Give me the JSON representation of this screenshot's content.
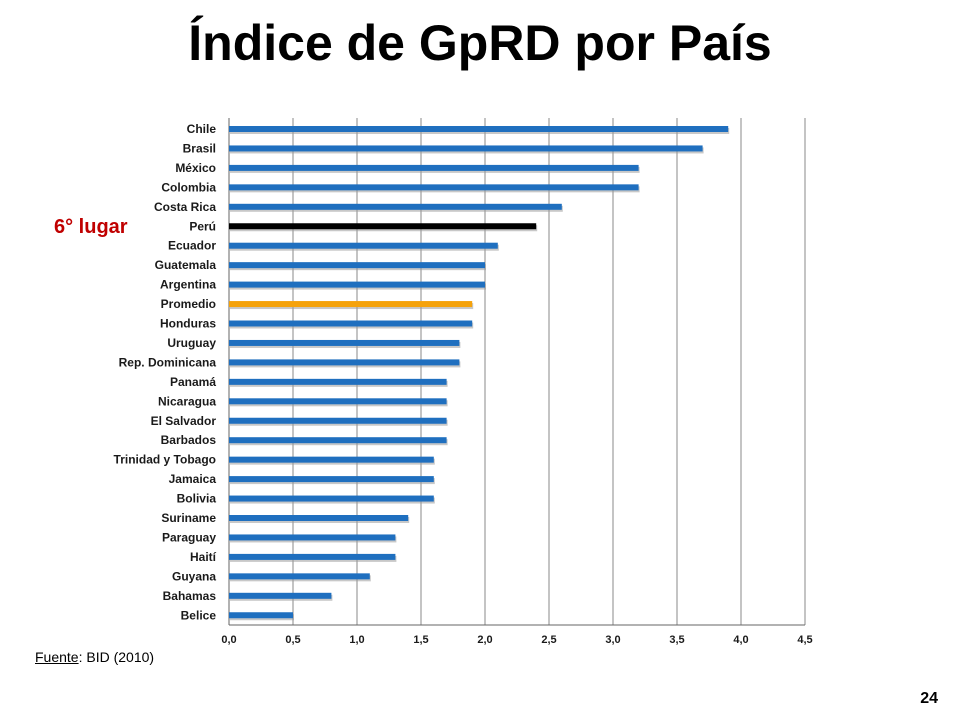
{
  "page": {
    "title": "Índice de GpRD por País",
    "annotation": "6° lugar",
    "source_label": "Fuente",
    "source_rest": ": BID (2010)",
    "page_number": "24"
  },
  "chart_data": {
    "type": "bar",
    "orientation": "horizontal",
    "title": "Índice de GpRD por País",
    "xlabel": "",
    "ylabel": "",
    "xlim": [
      0,
      4.5
    ],
    "x_ticks": [
      "0,0",
      "0,5",
      "1,0",
      "1,5",
      "2,0",
      "2,5",
      "3,0",
      "3,5",
      "4,0",
      "4,5"
    ],
    "grid": "vertical",
    "colors": {
      "default": "#1f6fbf",
      "highlight": "#000000",
      "average": "#f5a20a",
      "grid": "#888888"
    },
    "categories": [
      "Chile",
      "Brasil",
      "México",
      "Colombia",
      "Costa Rica",
      "Perú",
      "Ecuador",
      "Guatemala",
      "Argentina",
      "Promedio",
      "Honduras",
      "Uruguay",
      "Rep. Dominicana",
      "Panamá",
      "Nicaragua",
      "El Salvador",
      "Barbados",
      "Trinidad y Tobago",
      "Jamaica",
      "Bolivia",
      "Suriname",
      "Paraguay",
      "Haití",
      "Guyana",
      "Bahamas",
      "Belice"
    ],
    "values": [
      3.9,
      3.7,
      3.2,
      3.2,
      2.6,
      2.4,
      2.1,
      2.0,
      2.0,
      1.9,
      1.9,
      1.8,
      1.8,
      1.7,
      1.7,
      1.7,
      1.7,
      1.6,
      1.6,
      1.6,
      1.4,
      1.3,
      1.3,
      1.1,
      0.8,
      0.5
    ],
    "highlight_category": "Perú",
    "average_category": "Promedio"
  }
}
